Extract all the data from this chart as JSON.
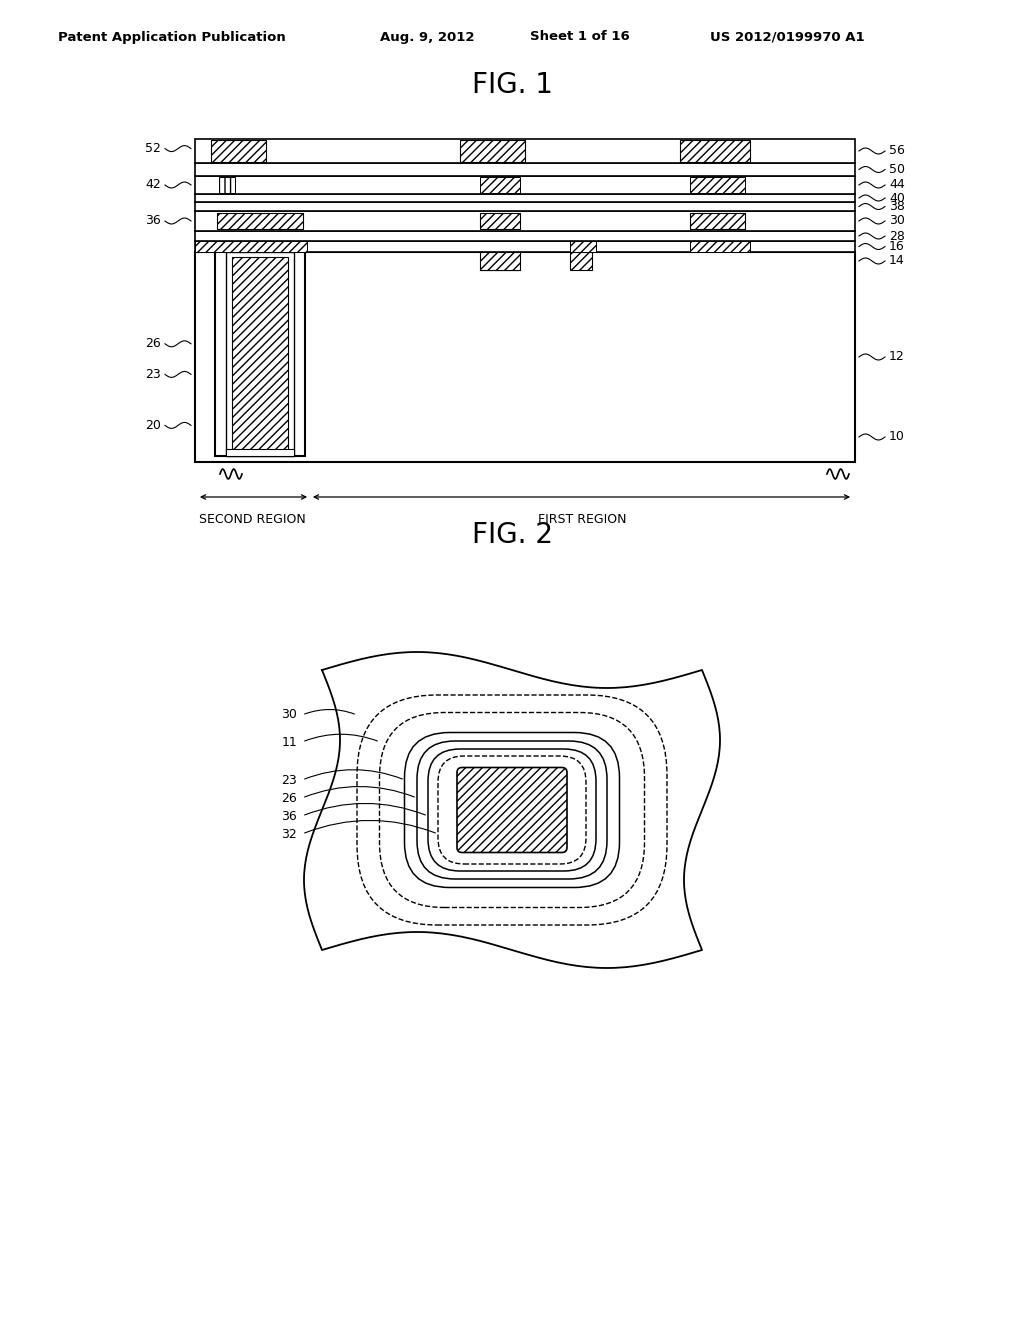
{
  "bg_color": "#ffffff",
  "header_text": "Patent Application Publication",
  "header_date": "Aug. 9, 2012",
  "header_sheet": "Sheet 1 of 16",
  "header_pub": "US 2012/0199970 A1",
  "fig1_title": "FIG. 1",
  "fig2_title": "FIG. 2",
  "region_label_second": "SECOND REGION",
  "region_label_first": "FIRST REGION"
}
